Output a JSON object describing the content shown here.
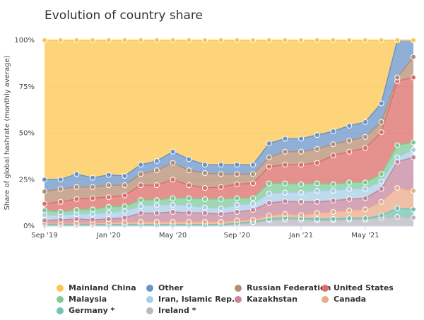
{
  "chart_data": {
    "type": "stacked-area",
    "title": "Evolution of country share",
    "y_label": "Share of global hashrate (monthly average)",
    "x": [
      "2019-09",
      "2019-10",
      "2019-11",
      "2019-12",
      "2020-01",
      "2020-02",
      "2020-03",
      "2020-04",
      "2020-05",
      "2020-06",
      "2020-07",
      "2020-08",
      "2020-09",
      "2020-10",
      "2020-11",
      "2020-12",
      "2021-01",
      "2021-02",
      "2021-03",
      "2021-04",
      "2021-05",
      "2021-06",
      "2021-07",
      "2021-08"
    ],
    "xticks": [
      {
        "value": "2019-09",
        "label": "Sep '19"
      },
      {
        "value": "2020-01",
        "label": "Jan '20"
      },
      {
        "value": "2020-05",
        "label": "May '20"
      },
      {
        "value": "2020-09",
        "label": "Sep '20"
      },
      {
        "value": "2021-01",
        "label": "Jan '21"
      },
      {
        "value": "2021-05",
        "label": "May '21"
      }
    ],
    "ylim": [
      0,
      100
    ],
    "yticks": [
      {
        "value": 0,
        "label": "0%"
      },
      {
        "value": 25,
        "label": "25%"
      },
      {
        "value": 50,
        "label": "50%"
      },
      {
        "value": 75,
        "label": "75%"
      },
      {
        "value": 100,
        "label": "100%"
      }
    ],
    "grid": true,
    "legend": "bottom",
    "series": [
      {
        "name": "Mainland China",
        "color": "#fcc54e",
        "values": [
          75,
          75,
          72,
          74,
          72.5,
          73,
          67,
          65,
          60,
          64,
          67,
          67,
          67,
          67,
          55.5,
          53,
          53,
          51,
          49,
          46,
          44,
          34,
          0,
          0
        ]
      },
      {
        "name": "Other",
        "color": "#6a94c8",
        "values": [
          6.4,
          5,
          7,
          5,
          5.5,
          5,
          5,
          5,
          6,
          6,
          4.5,
          5,
          5,
          5,
          7.5,
          7,
          7,
          7.5,
          7,
          8,
          8,
          10,
          20,
          9
        ]
      },
      {
        "name": "Russian Federation",
        "color": "#b58d74",
        "values": [
          6.6,
          7,
          6.5,
          6,
          6.5,
          5.5,
          6,
          8,
          9,
          8,
          8,
          7,
          5.5,
          5,
          5,
          7,
          7,
          7.5,
          6,
          6,
          6,
          5.5,
          2,
          11
        ]
      },
      {
        "name": "United States",
        "color": "#dc6e6a",
        "values": [
          3.5,
          5.4,
          5.8,
          6,
          5.2,
          5.9,
          8,
          8,
          10,
          7,
          6,
          6.5,
          7.5,
          8,
          9,
          10,
          10.5,
          11,
          15.5,
          16.5,
          18.5,
          22.5,
          34.5,
          35
        ]
      },
      {
        "name": "Malaysia",
        "color": "#7fcb95",
        "values": [
          2.5,
          1.9,
          2.2,
          2.5,
          3.1,
          2.6,
          3.4,
          2.6,
          3.6,
          4,
          4.5,
          5,
          3.6,
          3,
          5.5,
          5,
          4.5,
          4,
          3.5,
          3.5,
          3.5,
          4,
          6.5,
          4
        ]
      },
      {
        "name": "Iran, Islamic Rep.",
        "color": "#a8cfe8",
        "values": [
          3,
          2.3,
          2.7,
          3.1,
          3.4,
          3.5,
          3.6,
          4.4,
          3.8,
          3.8,
          3,
          3,
          3.8,
          3.3,
          5,
          4.7,
          5,
          6,
          5.3,
          5.5,
          5,
          4,
          2.4,
          4
        ]
      },
      {
        "name": "Kazakhstan",
        "color": "#c4879d",
        "values": [
          1.5,
          1.9,
          2.3,
          1.9,
          1.8,
          2.5,
          4.7,
          4.7,
          5.3,
          4.9,
          4.7,
          4.2,
          4.6,
          5.3,
          6.8,
          6.8,
          7,
          6,
          6.1,
          6.1,
          6,
          7,
          14.1,
          18
        ]
      },
      {
        "name": "Canada",
        "color": "#eaab8b",
        "values": [
          0.7,
          0.7,
          0.7,
          0.7,
          1.2,
          1.2,
          1.5,
          1.5,
          1.5,
          1.5,
          1.5,
          1.5,
          1.5,
          1.1,
          1.9,
          2,
          1.8,
          3.2,
          3.8,
          4.2,
          4.8,
          7.3,
          11,
          10
        ]
      },
      {
        "name": "Germany *",
        "color": "#73c2b3",
        "values": [
          0.6,
          0.6,
          0.6,
          0.6,
          0.6,
          0.6,
          0.6,
          0.6,
          0.6,
          0.6,
          0.6,
          0.3,
          0.5,
          0.3,
          0.8,
          1,
          0.7,
          0.8,
          0.8,
          0.7,
          0.7,
          1.2,
          4.5,
          4.5
        ]
      },
      {
        "name": "Ireland *",
        "color": "#b7bac0",
        "values": [
          0.2,
          0.2,
          0.2,
          0.2,
          0.2,
          0.2,
          0.2,
          0.2,
          0.2,
          0.2,
          0.2,
          0.5,
          1,
          2,
          3,
          3.5,
          3.5,
          3,
          3,
          3.5,
          3.5,
          4.5,
          5,
          4.5
        ]
      }
    ]
  }
}
